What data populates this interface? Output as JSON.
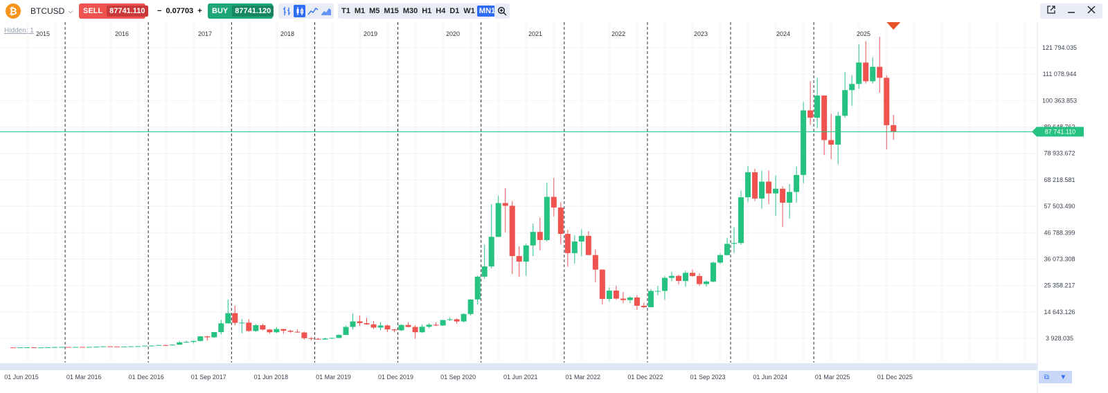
{
  "toolbar": {
    "symbol": "BTCUSD",
    "coin_icon": "bitcoin-icon",
    "sell_label": "SELL",
    "sell_price": "87741.110",
    "spread_minus": "−",
    "spread_value": "0.07703",
    "spread_plus": "+",
    "buy_label": "BUY",
    "buy_price": "87741.120",
    "chart_types": [
      "bars-icon",
      "candles-icon",
      "line-icon",
      "area-icon"
    ],
    "active_chart_type": "candles-icon",
    "timeframes": [
      "T1",
      "M1",
      "M5",
      "M15",
      "M30",
      "H1",
      "H4",
      "D1",
      "W1",
      "MN1"
    ],
    "active_timeframe": "MN1",
    "hidden_label": "Hidden: 1"
  },
  "colors": {
    "up": "#26c281",
    "down": "#ef5350",
    "price_line": "#26c281",
    "accent": "#2f6cf6"
  },
  "chart_data": {
    "type": "candlestick",
    "year_labels": [
      "2015",
      "2016",
      "2017",
      "2018",
      "2019",
      "2020",
      "2021",
      "2022",
      "2023",
      "2024",
      "2025"
    ],
    "x_tick_labels": [
      "01 Jun 2015",
      "01 Mar 2016",
      "01 Dec 2016",
      "01 Sep 2017",
      "01 Jun 2018",
      "01 Mar 2019",
      "01 Dec 2019",
      "01 Sep 2020",
      "01 Jun 2021",
      "01 Mar 2022",
      "01 Dec 2022",
      "01 Sep 2023",
      "01 Jun 2024",
      "01 Mar 2025",
      "01 Dec 2025"
    ],
    "y_tick_labels": [
      "121 794.035",
      "111 078.944",
      "100 363.853",
      "89 648.762",
      "78 933.672",
      "68 218.581",
      "57 503.490",
      "46 788.399",
      "36 073.308",
      "25 358.217",
      "14 643.126",
      "3 928.035"
    ],
    "y_ticks": [
      121794.035,
      111078.944,
      100363.853,
      89648.762,
      78933.672,
      68218.581,
      57503.49,
      46788.399,
      36073.308,
      25358.217,
      14643.126,
      3928.035
    ],
    "current_price_label": "87 741.110",
    "current_price": 87741.11,
    "candles": [
      {
        "t": "2015-05",
        "o": 236,
        "h": 247,
        "l": 228,
        "c": 230
      },
      {
        "t": "2015-06",
        "o": 230,
        "h": 267,
        "l": 221,
        "c": 263
      },
      {
        "t": "2015-07",
        "o": 263,
        "h": 317,
        "l": 253,
        "c": 284
      },
      {
        "t": "2015-08",
        "o": 284,
        "h": 285,
        "l": 199,
        "c": 230
      },
      {
        "t": "2015-09",
        "o": 230,
        "h": 243,
        "l": 225,
        "c": 236
      },
      {
        "t": "2015-10",
        "o": 236,
        "h": 334,
        "l": 236,
        "c": 314
      },
      {
        "t": "2015-11",
        "o": 314,
        "h": 495,
        "l": 309,
        "c": 377
      },
      {
        "t": "2015-12",
        "o": 377,
        "h": 467,
        "l": 350,
        "c": 430
      },
      {
        "t": "2016-01",
        "o": 430,
        "h": 462,
        "l": 350,
        "c": 368
      },
      {
        "t": "2016-02",
        "o": 368,
        "h": 446,
        "l": 364,
        "c": 437
      },
      {
        "t": "2016-03",
        "o": 437,
        "h": 440,
        "l": 397,
        "c": 416
      },
      {
        "t": "2016-04",
        "o": 416,
        "h": 467,
        "l": 414,
        "c": 448
      },
      {
        "t": "2016-05",
        "o": 448,
        "h": 549,
        "l": 436,
        "c": 531
      },
      {
        "t": "2016-06",
        "o": 531,
        "h": 780,
        "l": 531,
        "c": 673
      },
      {
        "t": "2016-07",
        "o": 673,
        "h": 705,
        "l": 608,
        "c": 624
      },
      {
        "t": "2016-08",
        "o": 624,
        "h": 626,
        "l": 480,
        "c": 575
      },
      {
        "t": "2016-09",
        "o": 575,
        "h": 612,
        "l": 575,
        "c": 609
      },
      {
        "t": "2016-10",
        "o": 609,
        "h": 730,
        "l": 604,
        "c": 698
      },
      {
        "t": "2016-11",
        "o": 698,
        "h": 750,
        "l": 684,
        "c": 742
      },
      {
        "t": "2016-12",
        "o": 742,
        "h": 980,
        "l": 742,
        "c": 964
      },
      {
        "t": "2017-01",
        "o": 964,
        "h": 1150,
        "l": 750,
        "c": 970
      },
      {
        "t": "2017-02",
        "o": 970,
        "h": 1200,
        "l": 920,
        "c": 1190
      },
      {
        "t": "2017-03",
        "o": 1190,
        "h": 1300,
        "l": 890,
        "c": 1080
      },
      {
        "t": "2017-04",
        "o": 1080,
        "h": 1420,
        "l": 1070,
        "c": 1350
      },
      {
        "t": "2017-05",
        "o": 1350,
        "h": 2760,
        "l": 1340,
        "c": 2300
      },
      {
        "t": "2017-06",
        "o": 2300,
        "h": 2980,
        "l": 2080,
        "c": 2480
      },
      {
        "t": "2017-07",
        "o": 2480,
        "h": 2920,
        "l": 1840,
        "c": 2870
      },
      {
        "t": "2017-08",
        "o": 2870,
        "h": 4750,
        "l": 2680,
        "c": 4730
      },
      {
        "t": "2017-09",
        "o": 4730,
        "h": 4970,
        "l": 2970,
        "c": 4350
      },
      {
        "t": "2017-10",
        "o": 4350,
        "h": 6470,
        "l": 4110,
        "c": 6450
      },
      {
        "t": "2017-11",
        "o": 6450,
        "h": 11400,
        "l": 5500,
        "c": 10000
      },
      {
        "t": "2017-12",
        "o": 10000,
        "h": 19700,
        "l": 10000,
        "c": 14150
      },
      {
        "t": "2018-01",
        "o": 14150,
        "h": 17200,
        "l": 9200,
        "c": 10200
      },
      {
        "t": "2018-02",
        "o": 10200,
        "h": 11800,
        "l": 6000,
        "c": 10300
      },
      {
        "t": "2018-03",
        "o": 10300,
        "h": 11700,
        "l": 6600,
        "c": 6900
      },
      {
        "t": "2018-04",
        "o": 6900,
        "h": 9800,
        "l": 6600,
        "c": 9250
      },
      {
        "t": "2018-05",
        "o": 9250,
        "h": 9900,
        "l": 7100,
        "c": 7500
      },
      {
        "t": "2018-06",
        "o": 7500,
        "h": 7800,
        "l": 5800,
        "c": 6400
      },
      {
        "t": "2018-07",
        "o": 6400,
        "h": 8500,
        "l": 6100,
        "c": 7700
      },
      {
        "t": "2018-08",
        "o": 7700,
        "h": 7800,
        "l": 5900,
        "c": 7000
      },
      {
        "t": "2018-09",
        "o": 7000,
        "h": 7400,
        "l": 6100,
        "c": 6600
      },
      {
        "t": "2018-10",
        "o": 6600,
        "h": 7600,
        "l": 6200,
        "c": 6300
      },
      {
        "t": "2018-11",
        "o": 6300,
        "h": 6600,
        "l": 3500,
        "c": 4000
      },
      {
        "t": "2018-12",
        "o": 4000,
        "h": 4400,
        "l": 3100,
        "c": 3700
      },
      {
        "t": "2019-01",
        "o": 3700,
        "h": 4100,
        "l": 3350,
        "c": 3450
      },
      {
        "t": "2019-02",
        "o": 3450,
        "h": 4200,
        "l": 3350,
        "c": 3850
      },
      {
        "t": "2019-03",
        "o": 3850,
        "h": 4150,
        "l": 3700,
        "c": 4100
      },
      {
        "t": "2019-04",
        "o": 4100,
        "h": 5600,
        "l": 4050,
        "c": 5300
      },
      {
        "t": "2019-05",
        "o": 5300,
        "h": 9100,
        "l": 5300,
        "c": 8550
      },
      {
        "t": "2019-06",
        "o": 8550,
        "h": 13900,
        "l": 7500,
        "c": 10800
      },
      {
        "t": "2019-07",
        "o": 10800,
        "h": 13200,
        "l": 9000,
        "c": 10100
      },
      {
        "t": "2019-08",
        "o": 10100,
        "h": 12300,
        "l": 9400,
        "c": 9600
      },
      {
        "t": "2019-09",
        "o": 9600,
        "h": 10950,
        "l": 7700,
        "c": 8300
      },
      {
        "t": "2019-10",
        "o": 8300,
        "h": 10500,
        "l": 7300,
        "c": 9150
      },
      {
        "t": "2019-11",
        "o": 9150,
        "h": 9500,
        "l": 6500,
        "c": 7550
      },
      {
        "t": "2019-12",
        "o": 7550,
        "h": 7750,
        "l": 6430,
        "c": 7190
      },
      {
        "t": "2020-01",
        "o": 7190,
        "h": 9600,
        "l": 6860,
        "c": 9350
      },
      {
        "t": "2020-02",
        "o": 9350,
        "h": 10500,
        "l": 8400,
        "c": 8550
      },
      {
        "t": "2020-03",
        "o": 8550,
        "h": 9200,
        "l": 3800,
        "c": 6400
      },
      {
        "t": "2020-04",
        "o": 6400,
        "h": 9500,
        "l": 6150,
        "c": 8620
      },
      {
        "t": "2020-05",
        "o": 8620,
        "h": 10070,
        "l": 8100,
        "c": 9450
      },
      {
        "t": "2020-06",
        "o": 9450,
        "h": 10400,
        "l": 8900,
        "c": 9140
      },
      {
        "t": "2020-07",
        "o": 9140,
        "h": 11450,
        "l": 8950,
        "c": 11350
      },
      {
        "t": "2020-08",
        "o": 11350,
        "h": 12480,
        "l": 10950,
        "c": 11650
      },
      {
        "t": "2020-09",
        "o": 11650,
        "h": 12050,
        "l": 9850,
        "c": 10780
      },
      {
        "t": "2020-10",
        "o": 10780,
        "h": 14100,
        "l": 10430,
        "c": 13800
      },
      {
        "t": "2020-11",
        "o": 13800,
        "h": 19800,
        "l": 13200,
        "c": 19700
      },
      {
        "t": "2020-12",
        "o": 19700,
        "h": 29300,
        "l": 17600,
        "c": 28950
      },
      {
        "t": "2021-01",
        "o": 28950,
        "h": 41950,
        "l": 28100,
        "c": 33100
      },
      {
        "t": "2021-02",
        "o": 33100,
        "h": 58350,
        "l": 32300,
        "c": 45100
      },
      {
        "t": "2021-03",
        "o": 45100,
        "h": 61780,
        "l": 45000,
        "c": 58800
      },
      {
        "t": "2021-04",
        "o": 58800,
        "h": 64900,
        "l": 47000,
        "c": 57700
      },
      {
        "t": "2021-05",
        "o": 57700,
        "h": 59600,
        "l": 30000,
        "c": 37300
      },
      {
        "t": "2021-06",
        "o": 37300,
        "h": 41300,
        "l": 28800,
        "c": 35040
      },
      {
        "t": "2021-07",
        "o": 35040,
        "h": 42300,
        "l": 29300,
        "c": 41600
      },
      {
        "t": "2021-08",
        "o": 41600,
        "h": 50500,
        "l": 37300,
        "c": 47100
      },
      {
        "t": "2021-09",
        "o": 47100,
        "h": 52900,
        "l": 39600,
        "c": 43800
      },
      {
        "t": "2021-10",
        "o": 43800,
        "h": 67000,
        "l": 43300,
        "c": 61300
      },
      {
        "t": "2021-11",
        "o": 61300,
        "h": 69000,
        "l": 53300,
        "c": 57000
      },
      {
        "t": "2021-12",
        "o": 57000,
        "h": 59100,
        "l": 42000,
        "c": 46300
      },
      {
        "t": "2022-01",
        "o": 46300,
        "h": 47900,
        "l": 33000,
        "c": 38500
      },
      {
        "t": "2022-02",
        "o": 38500,
        "h": 45800,
        "l": 34300,
        "c": 43200
      },
      {
        "t": "2022-03",
        "o": 43200,
        "h": 48200,
        "l": 37200,
        "c": 45500
      },
      {
        "t": "2022-04",
        "o": 45500,
        "h": 47400,
        "l": 37700,
        "c": 37700
      },
      {
        "t": "2022-05",
        "o": 37700,
        "h": 40000,
        "l": 26700,
        "c": 31800
      },
      {
        "t": "2022-06",
        "o": 31800,
        "h": 31900,
        "l": 17600,
        "c": 19900
      },
      {
        "t": "2022-07",
        "o": 19900,
        "h": 24600,
        "l": 18800,
        "c": 23300
      },
      {
        "t": "2022-08",
        "o": 23300,
        "h": 25200,
        "l": 19600,
        "c": 20050
      },
      {
        "t": "2022-09",
        "o": 20050,
        "h": 22800,
        "l": 18150,
        "c": 19450
      },
      {
        "t": "2022-10",
        "o": 19450,
        "h": 21000,
        "l": 18200,
        "c": 20500
      },
      {
        "t": "2022-11",
        "o": 20500,
        "h": 21450,
        "l": 15500,
        "c": 17150
      },
      {
        "t": "2022-12",
        "o": 17150,
        "h": 18400,
        "l": 16250,
        "c": 16550
      },
      {
        "t": "2023-01",
        "o": 16550,
        "h": 23950,
        "l": 16500,
        "c": 23150
      },
      {
        "t": "2023-02",
        "o": 23150,
        "h": 25250,
        "l": 21350,
        "c": 23150
      },
      {
        "t": "2023-03",
        "o": 23150,
        "h": 29200,
        "l": 19550,
        "c": 28450
      },
      {
        "t": "2023-04",
        "o": 28450,
        "h": 31000,
        "l": 26950,
        "c": 29250
      },
      {
        "t": "2023-05",
        "o": 29250,
        "h": 29800,
        "l": 25800,
        "c": 27200
      },
      {
        "t": "2023-06",
        "o": 27200,
        "h": 31400,
        "l": 24800,
        "c": 30500
      },
      {
        "t": "2023-07",
        "o": 30500,
        "h": 31800,
        "l": 28850,
        "c": 29200
      },
      {
        "t": "2023-08",
        "o": 29200,
        "h": 30200,
        "l": 25300,
        "c": 25950
      },
      {
        "t": "2023-09",
        "o": 25950,
        "h": 27450,
        "l": 24900,
        "c": 26950
      },
      {
        "t": "2023-10",
        "o": 26950,
        "h": 35100,
        "l": 26550,
        "c": 34650
      },
      {
        "t": "2023-11",
        "o": 34650,
        "h": 38400,
        "l": 34100,
        "c": 37700
      },
      {
        "t": "2023-12",
        "o": 37700,
        "h": 44700,
        "l": 37600,
        "c": 42250
      },
      {
        "t": "2024-01",
        "o": 42250,
        "h": 48950,
        "l": 38550,
        "c": 42600
      },
      {
        "t": "2024-02",
        "o": 42600,
        "h": 63900,
        "l": 41850,
        "c": 61150
      },
      {
        "t": "2024-03",
        "o": 61150,
        "h": 73800,
        "l": 59100,
        "c": 71300
      },
      {
        "t": "2024-04",
        "o": 71300,
        "h": 72700,
        "l": 59600,
        "c": 60650
      },
      {
        "t": "2024-05",
        "o": 60650,
        "h": 71950,
        "l": 56550,
        "c": 67500
      },
      {
        "t": "2024-06",
        "o": 67500,
        "h": 71950,
        "l": 58400,
        "c": 62700
      },
      {
        "t": "2024-07",
        "o": 62700,
        "h": 70000,
        "l": 53550,
        "c": 64600
      },
      {
        "t": "2024-08",
        "o": 64600,
        "h": 65600,
        "l": 49050,
        "c": 58950
      },
      {
        "t": "2024-09",
        "o": 58950,
        "h": 66500,
        "l": 52550,
        "c": 63300
      },
      {
        "t": "2024-10",
        "o": 63300,
        "h": 73600,
        "l": 58900,
        "c": 70200
      },
      {
        "t": "2024-11",
        "o": 70200,
        "h": 99800,
        "l": 66800,
        "c": 96400
      },
      {
        "t": "2024-12",
        "o": 96400,
        "h": 108300,
        "l": 90500,
        "c": 93400
      },
      {
        "t": "2025-01",
        "o": 93400,
        "h": 109600,
        "l": 89200,
        "c": 102400
      },
      {
        "t": "2025-02",
        "o": 102400,
        "h": 102500,
        "l": 78200,
        "c": 84350
      },
      {
        "t": "2025-03",
        "o": 84350,
        "h": 95000,
        "l": 76600,
        "c": 82500
      },
      {
        "t": "2025-04",
        "o": 82500,
        "h": 95800,
        "l": 74500,
        "c": 94200
      },
      {
        "t": "2025-05",
        "o": 94200,
        "h": 111900,
        "l": 93400,
        "c": 104600
      },
      {
        "t": "2025-06",
        "o": 104600,
        "h": 110600,
        "l": 98200,
        "c": 107100
      },
      {
        "t": "2025-07",
        "o": 107100,
        "h": 123200,
        "l": 105100,
        "c": 115800
      },
      {
        "t": "2025-08",
        "o": 115800,
        "h": 124500,
        "l": 107300,
        "c": 108200
      },
      {
        "t": "2025-09",
        "o": 108200,
        "h": 117900,
        "l": 107250,
        "c": 114050
      },
      {
        "t": "2025-10",
        "o": 114050,
        "h": 126200,
        "l": 103500,
        "c": 109600
      },
      {
        "t": "2025-11",
        "o": 109600,
        "h": 110600,
        "l": 80600,
        "c": 90400
      },
      {
        "t": "2025-12",
        "o": 90400,
        "h": 94600,
        "l": 84400,
        "c": 87741
      }
    ]
  }
}
